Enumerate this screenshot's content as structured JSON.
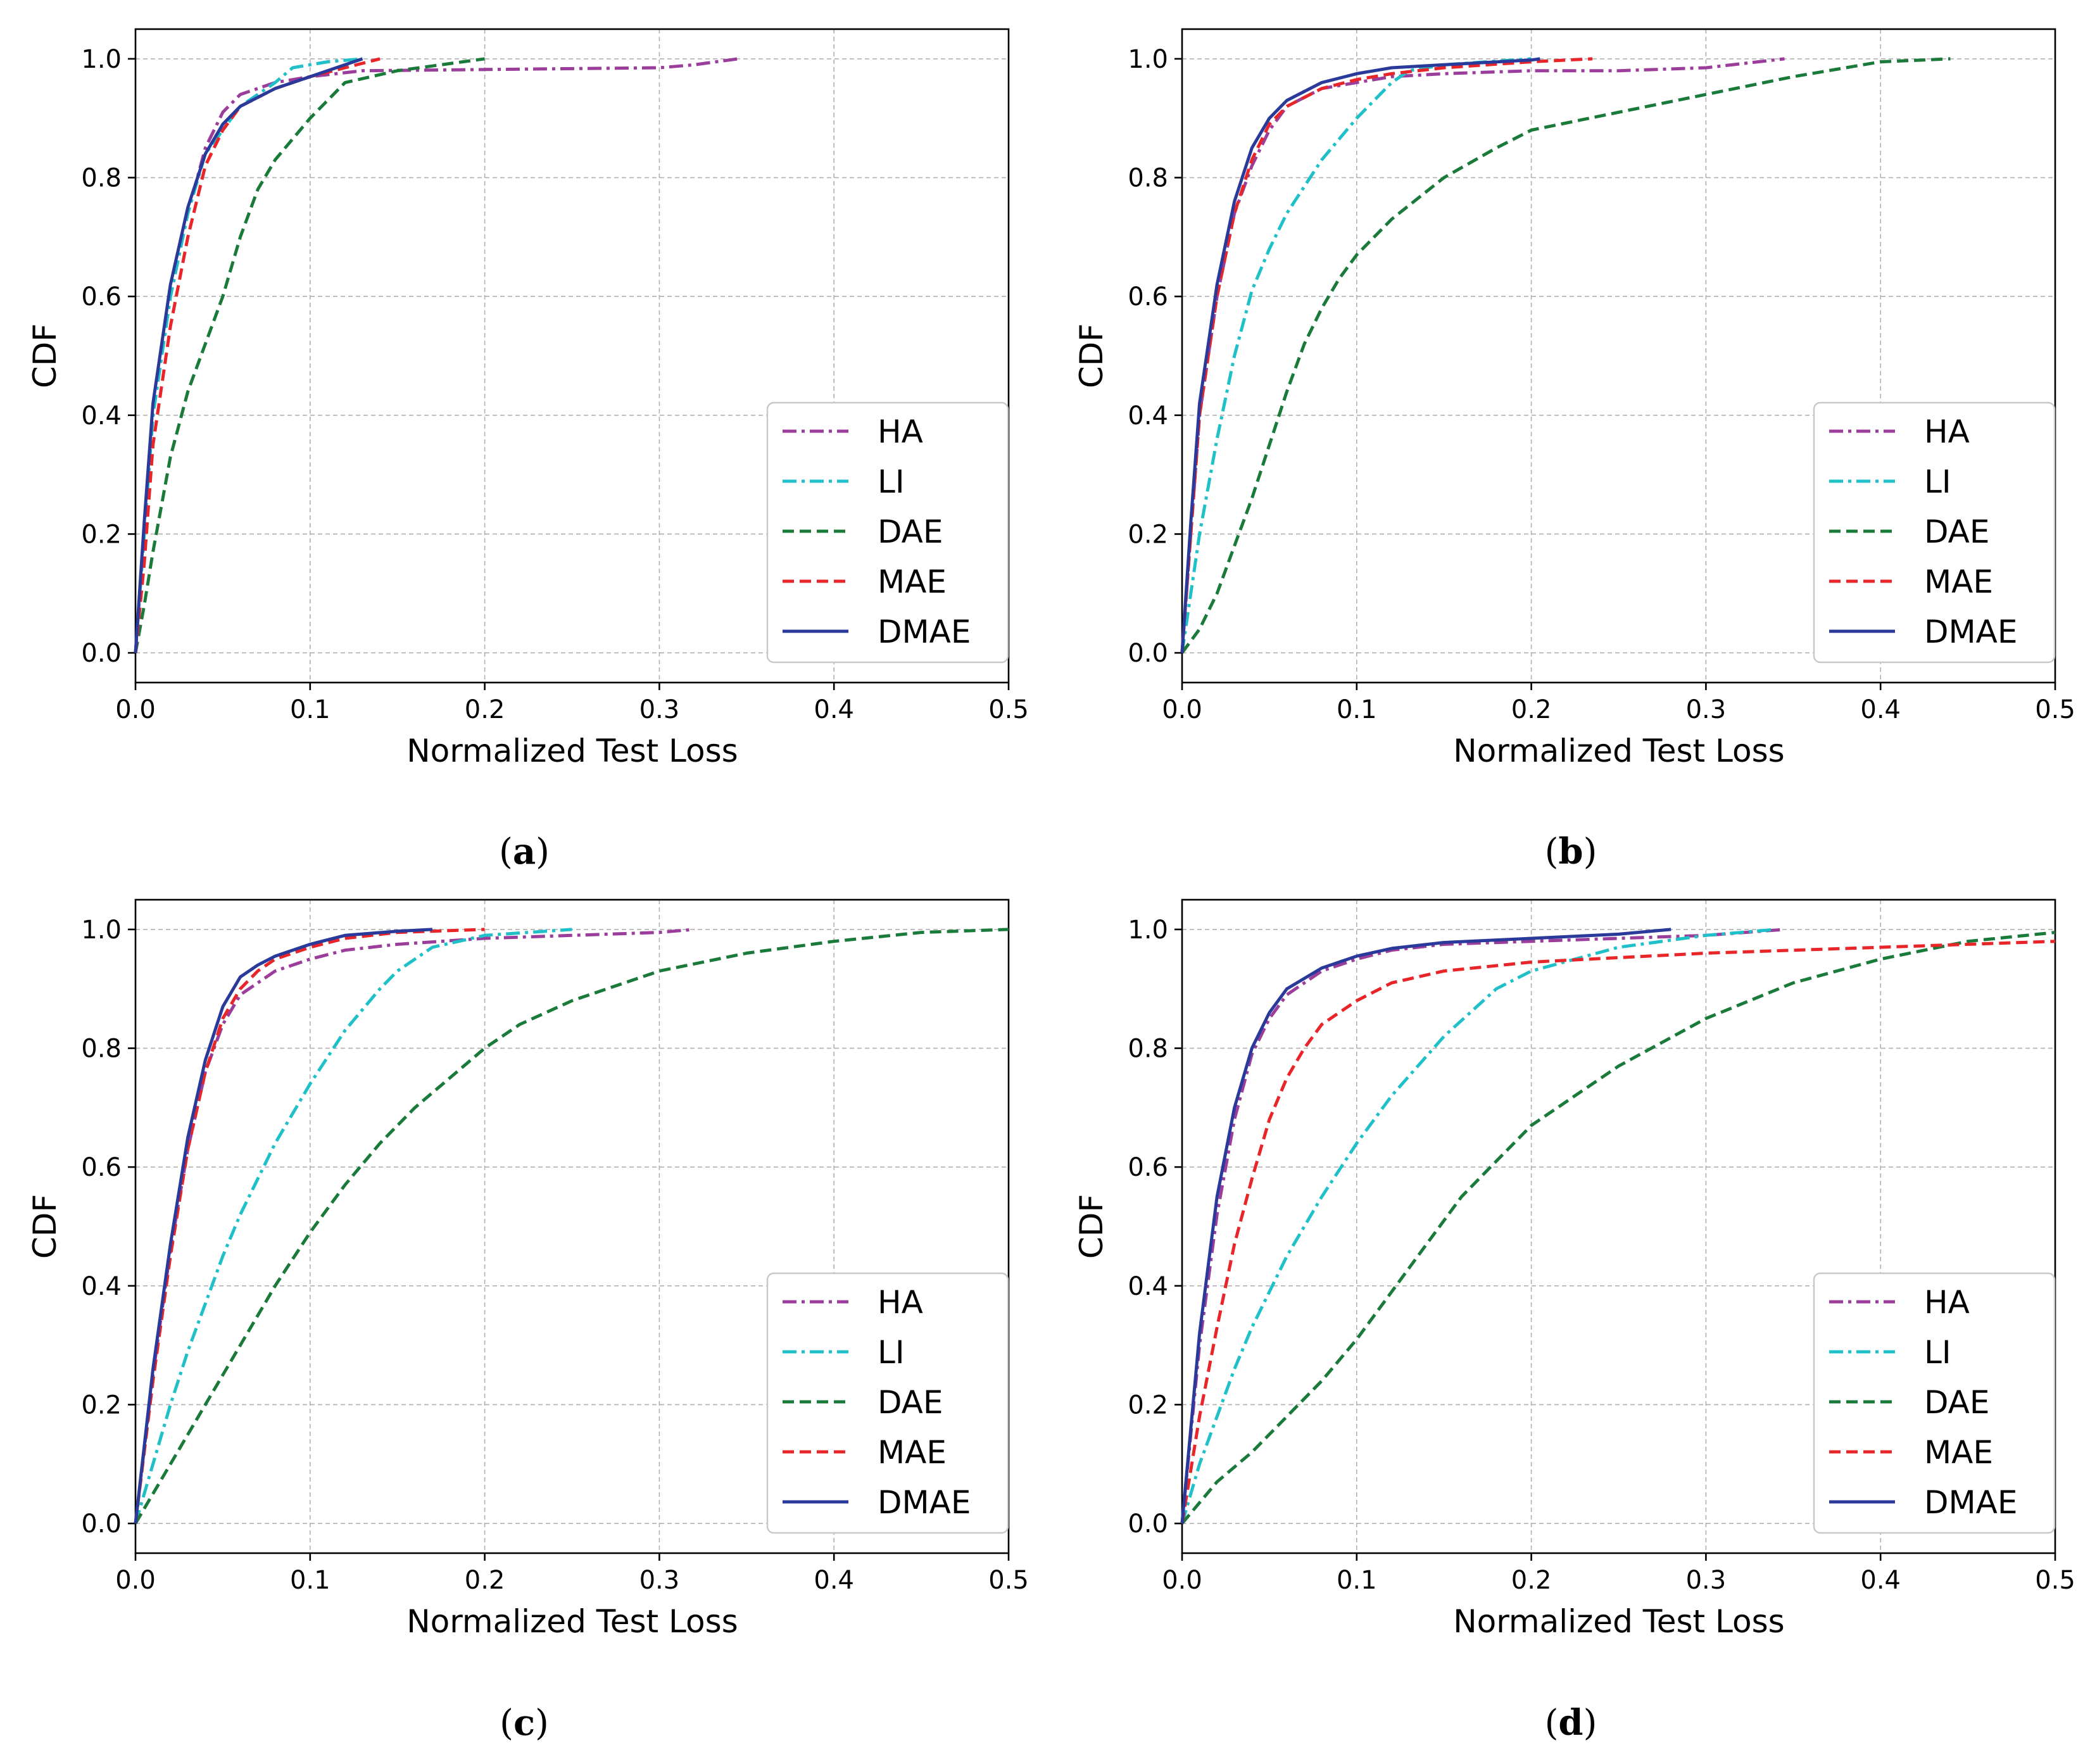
{
  "chart_data": [
    {
      "type": "line",
      "caption": "(a)",
      "caption_letter": "a",
      "xlabel": "Normalized Test Loss",
      "ylabel": "CDF",
      "xlim": [
        0,
        0.5
      ],
      "ylim": [
        -0.05,
        1.05
      ],
      "xticks": [
        0.0,
        0.1,
        0.2,
        0.3,
        0.4,
        0.5
      ],
      "xtick_labels": [
        "0.0",
        "0.1",
        "0.2",
        "0.3",
        "0.4",
        "0.5"
      ],
      "yticks": [
        0.0,
        0.2,
        0.4,
        0.6,
        0.8,
        1.0
      ],
      "ytick_labels": [
        "0.0",
        "0.2",
        "0.4",
        "0.6",
        "0.8",
        "1.0"
      ],
      "grid": true,
      "legend": "lower-right",
      "series": [
        {
          "name": "HA",
          "color": "#9b3d9b",
          "style": "dashdot",
          "x": [
            0,
            0.005,
            0.01,
            0.02,
            0.03,
            0.04,
            0.05,
            0.06,
            0.08,
            0.1,
            0.13,
            0.2,
            0.3,
            0.32,
            0.345
          ],
          "y": [
            0,
            0.2,
            0.4,
            0.6,
            0.74,
            0.85,
            0.91,
            0.94,
            0.96,
            0.97,
            0.98,
            0.982,
            0.985,
            0.99,
            1.0
          ]
        },
        {
          "name": "LI",
          "color": "#20c0c8",
          "style": "dashdot",
          "x": [
            0,
            0.005,
            0.01,
            0.02,
            0.03,
            0.04,
            0.05,
            0.06,
            0.08,
            0.09,
            0.1,
            0.11,
            0.13
          ],
          "y": [
            0,
            0.2,
            0.4,
            0.6,
            0.74,
            0.84,
            0.88,
            0.92,
            0.96,
            0.985,
            0.99,
            0.995,
            1.0
          ]
        },
        {
          "name": "DAE",
          "color": "#1a7a3a",
          "style": "dashed",
          "x": [
            0,
            0.005,
            0.01,
            0.02,
            0.03,
            0.04,
            0.05,
            0.06,
            0.07,
            0.08,
            0.1,
            0.12,
            0.15,
            0.2
          ],
          "y": [
            0,
            0.08,
            0.17,
            0.33,
            0.44,
            0.52,
            0.6,
            0.7,
            0.78,
            0.83,
            0.9,
            0.96,
            0.98,
            1.0
          ]
        },
        {
          "name": "MAE",
          "color": "#e8262a",
          "style": "dashed",
          "x": [
            0,
            0.005,
            0.01,
            0.02,
            0.03,
            0.04,
            0.05,
            0.06,
            0.08,
            0.1,
            0.12,
            0.14
          ],
          "y": [
            0,
            0.15,
            0.35,
            0.55,
            0.7,
            0.82,
            0.88,
            0.92,
            0.95,
            0.97,
            0.985,
            1.0
          ]
        },
        {
          "name": "DMAE",
          "color": "#2a3a9a",
          "style": "solid",
          "x": [
            0,
            0.005,
            0.01,
            0.02,
            0.03,
            0.04,
            0.05,
            0.06,
            0.08,
            0.1,
            0.12,
            0.13
          ],
          "y": [
            0,
            0.22,
            0.42,
            0.62,
            0.75,
            0.84,
            0.89,
            0.92,
            0.95,
            0.97,
            0.99,
            1.0
          ]
        }
      ]
    },
    {
      "type": "line",
      "caption": "(b)",
      "caption_letter": "b",
      "xlabel": "Normalized Test Loss",
      "ylabel": "CDF",
      "xlim": [
        0,
        0.5
      ],
      "ylim": [
        -0.05,
        1.05
      ],
      "xticks": [
        0.0,
        0.1,
        0.2,
        0.3,
        0.4,
        0.5
      ],
      "xtick_labels": [
        "0.0",
        "0.1",
        "0.2",
        "0.3",
        "0.4",
        "0.5"
      ],
      "yticks": [
        0.0,
        0.2,
        0.4,
        0.6,
        0.8,
        1.0
      ],
      "ytick_labels": [
        "0.0",
        "0.2",
        "0.4",
        "0.6",
        "0.8",
        "1.0"
      ],
      "grid": true,
      "legend": "lower-right",
      "series": [
        {
          "name": "HA",
          "color": "#9b3d9b",
          "style": "dashdot",
          "x": [
            0,
            0.005,
            0.01,
            0.02,
            0.03,
            0.04,
            0.05,
            0.06,
            0.08,
            0.1,
            0.12,
            0.15,
            0.2,
            0.25,
            0.3,
            0.345
          ],
          "y": [
            0,
            0.2,
            0.4,
            0.6,
            0.74,
            0.82,
            0.88,
            0.92,
            0.95,
            0.96,
            0.97,
            0.975,
            0.98,
            0.98,
            0.985,
            1.0
          ]
        },
        {
          "name": "LI",
          "color": "#20c0c8",
          "style": "dashdot",
          "x": [
            0,
            0.005,
            0.01,
            0.02,
            0.03,
            0.04,
            0.05,
            0.06,
            0.08,
            0.1,
            0.12,
            0.13,
            0.15,
            0.2
          ],
          "y": [
            0,
            0.1,
            0.2,
            0.36,
            0.5,
            0.61,
            0.68,
            0.74,
            0.83,
            0.9,
            0.96,
            0.98,
            0.99,
            1.0
          ]
        },
        {
          "name": "DAE",
          "color": "#1a7a3a",
          "style": "dashed",
          "x": [
            0,
            0.01,
            0.02,
            0.03,
            0.04,
            0.05,
            0.06,
            0.07,
            0.08,
            0.09,
            0.1,
            0.12,
            0.15,
            0.18,
            0.2,
            0.25,
            0.3,
            0.35,
            0.4,
            0.44
          ],
          "y": [
            0,
            0.04,
            0.1,
            0.18,
            0.26,
            0.35,
            0.44,
            0.52,
            0.58,
            0.63,
            0.67,
            0.73,
            0.8,
            0.85,
            0.88,
            0.91,
            0.94,
            0.97,
            0.995,
            1.0
          ]
        },
        {
          "name": "MAE",
          "color": "#e8262a",
          "style": "dashed",
          "x": [
            0,
            0.005,
            0.01,
            0.02,
            0.03,
            0.04,
            0.05,
            0.06,
            0.08,
            0.1,
            0.12,
            0.15,
            0.2,
            0.235
          ],
          "y": [
            0,
            0.2,
            0.4,
            0.6,
            0.74,
            0.83,
            0.89,
            0.92,
            0.95,
            0.965,
            0.975,
            0.985,
            0.995,
            1.0
          ]
        },
        {
          "name": "DMAE",
          "color": "#2a3a9a",
          "style": "solid",
          "x": [
            0,
            0.005,
            0.01,
            0.02,
            0.03,
            0.04,
            0.05,
            0.06,
            0.08,
            0.1,
            0.12,
            0.15,
            0.2,
            0.205
          ],
          "y": [
            0,
            0.22,
            0.42,
            0.62,
            0.76,
            0.85,
            0.9,
            0.93,
            0.96,
            0.975,
            0.985,
            0.99,
            0.998,
            1.0
          ]
        }
      ]
    },
    {
      "type": "line",
      "caption": "(c)",
      "caption_letter": "c",
      "xlabel": "Normalized Test Loss",
      "ylabel": "CDF",
      "xlim": [
        0,
        0.5
      ],
      "ylim": [
        -0.05,
        1.05
      ],
      "xticks": [
        0.0,
        0.1,
        0.2,
        0.3,
        0.4,
        0.5
      ],
      "xtick_labels": [
        "0.0",
        "0.1",
        "0.2",
        "0.3",
        "0.4",
        "0.5"
      ],
      "yticks": [
        0.0,
        0.2,
        0.4,
        0.6,
        0.8,
        1.0
      ],
      "ytick_labels": [
        "0.0",
        "0.2",
        "0.4",
        "0.6",
        "0.8",
        "1.0"
      ],
      "grid": true,
      "legend": "lower-right",
      "series": [
        {
          "name": "HA",
          "color": "#9b3d9b",
          "style": "dashdot",
          "x": [
            0,
            0.01,
            0.02,
            0.03,
            0.04,
            0.05,
            0.06,
            0.07,
            0.08,
            0.1,
            0.12,
            0.15,
            0.2,
            0.25,
            0.3,
            0.32
          ],
          "y": [
            0,
            0.25,
            0.46,
            0.63,
            0.76,
            0.84,
            0.89,
            0.91,
            0.93,
            0.95,
            0.965,
            0.975,
            0.985,
            0.99,
            0.995,
            1.0
          ]
        },
        {
          "name": "LI",
          "color": "#20c0c8",
          "style": "dashdot",
          "x": [
            0,
            0.01,
            0.02,
            0.03,
            0.04,
            0.05,
            0.06,
            0.07,
            0.08,
            0.1,
            0.12,
            0.14,
            0.15,
            0.17,
            0.2,
            0.25
          ],
          "y": [
            0,
            0.1,
            0.2,
            0.29,
            0.37,
            0.45,
            0.52,
            0.58,
            0.64,
            0.74,
            0.83,
            0.9,
            0.93,
            0.97,
            0.99,
            1.0
          ]
        },
        {
          "name": "DAE",
          "color": "#1a7a3a",
          "style": "dashed",
          "x": [
            0,
            0.02,
            0.04,
            0.06,
            0.08,
            0.1,
            0.12,
            0.14,
            0.16,
            0.18,
            0.2,
            0.22,
            0.25,
            0.3,
            0.35,
            0.4,
            0.45,
            0.5
          ],
          "y": [
            0,
            0.1,
            0.2,
            0.3,
            0.4,
            0.49,
            0.57,
            0.64,
            0.7,
            0.75,
            0.8,
            0.84,
            0.88,
            0.93,
            0.96,
            0.98,
            0.995,
            1.0
          ]
        },
        {
          "name": "MAE",
          "color": "#e8262a",
          "style": "dashed",
          "x": [
            0,
            0.01,
            0.02,
            0.03,
            0.04,
            0.05,
            0.06,
            0.07,
            0.08,
            0.1,
            0.12,
            0.15,
            0.2
          ],
          "y": [
            0,
            0.24,
            0.45,
            0.63,
            0.76,
            0.85,
            0.9,
            0.93,
            0.95,
            0.97,
            0.985,
            0.995,
            1.0
          ]
        },
        {
          "name": "DMAE",
          "color": "#2a3a9a",
          "style": "solid",
          "x": [
            0,
            0.01,
            0.02,
            0.03,
            0.04,
            0.05,
            0.06,
            0.07,
            0.08,
            0.1,
            0.12,
            0.15,
            0.17
          ],
          "y": [
            0,
            0.26,
            0.47,
            0.65,
            0.78,
            0.87,
            0.92,
            0.94,
            0.955,
            0.975,
            0.99,
            0.997,
            1.0
          ]
        }
      ]
    },
    {
      "type": "line",
      "caption": "(d)",
      "caption_letter": "d",
      "xlabel": "Normalized Test Loss",
      "ylabel": "CDF",
      "xlim": [
        0,
        0.5
      ],
      "ylim": [
        -0.05,
        1.05
      ],
      "xticks": [
        0.0,
        0.1,
        0.2,
        0.3,
        0.4,
        0.5
      ],
      "xtick_labels": [
        "0.0",
        "0.1",
        "0.2",
        "0.3",
        "0.4",
        "0.5"
      ],
      "yticks": [
        0.0,
        0.2,
        0.4,
        0.6,
        0.8,
        1.0
      ],
      "ytick_labels": [
        "0.0",
        "0.2",
        "0.4",
        "0.6",
        "0.8",
        "1.0"
      ],
      "grid": true,
      "legend": "lower-right",
      "series": [
        {
          "name": "HA",
          "color": "#9b3d9b",
          "style": "dashdot",
          "x": [
            0,
            0.01,
            0.02,
            0.03,
            0.04,
            0.05,
            0.06,
            0.08,
            0.1,
            0.12,
            0.15,
            0.2,
            0.25,
            0.3,
            0.345
          ],
          "y": [
            0,
            0.3,
            0.52,
            0.68,
            0.79,
            0.85,
            0.89,
            0.93,
            0.95,
            0.965,
            0.975,
            0.98,
            0.985,
            0.99,
            1.0
          ]
        },
        {
          "name": "LI",
          "color": "#20c0c8",
          "style": "dashdot",
          "x": [
            0,
            0.01,
            0.02,
            0.03,
            0.04,
            0.05,
            0.06,
            0.08,
            0.1,
            0.12,
            0.15,
            0.18,
            0.2,
            0.25,
            0.3,
            0.34
          ],
          "y": [
            0,
            0.1,
            0.18,
            0.26,
            0.33,
            0.39,
            0.45,
            0.55,
            0.64,
            0.72,
            0.82,
            0.9,
            0.93,
            0.97,
            0.99,
            1.0
          ]
        },
        {
          "name": "DAE",
          "color": "#1a7a3a",
          "style": "dashed",
          "x": [
            0,
            0.02,
            0.04,
            0.06,
            0.08,
            0.1,
            0.12,
            0.14,
            0.16,
            0.18,
            0.2,
            0.25,
            0.3,
            0.35,
            0.4,
            0.45,
            0.5
          ],
          "y": [
            0,
            0.07,
            0.12,
            0.18,
            0.24,
            0.31,
            0.39,
            0.47,
            0.55,
            0.61,
            0.67,
            0.77,
            0.85,
            0.91,
            0.95,
            0.98,
            0.995
          ]
        },
        {
          "name": "MAE",
          "color": "#e8262a",
          "style": "dashed",
          "x": [
            0,
            0.01,
            0.02,
            0.03,
            0.04,
            0.05,
            0.06,
            0.07,
            0.08,
            0.1,
            0.12,
            0.15,
            0.2,
            0.3,
            0.4,
            0.5
          ],
          "y": [
            0,
            0.18,
            0.33,
            0.47,
            0.58,
            0.68,
            0.75,
            0.8,
            0.84,
            0.88,
            0.91,
            0.93,
            0.945,
            0.96,
            0.97,
            0.98
          ]
        },
        {
          "name": "DMAE",
          "color": "#2a3a9a",
          "style": "solid",
          "x": [
            0,
            0.01,
            0.02,
            0.03,
            0.04,
            0.05,
            0.06,
            0.08,
            0.1,
            0.12,
            0.15,
            0.2,
            0.25,
            0.28
          ],
          "y": [
            0,
            0.32,
            0.55,
            0.7,
            0.8,
            0.86,
            0.9,
            0.935,
            0.955,
            0.968,
            0.978,
            0.985,
            0.992,
            1.0
          ]
        }
      ]
    }
  ]
}
